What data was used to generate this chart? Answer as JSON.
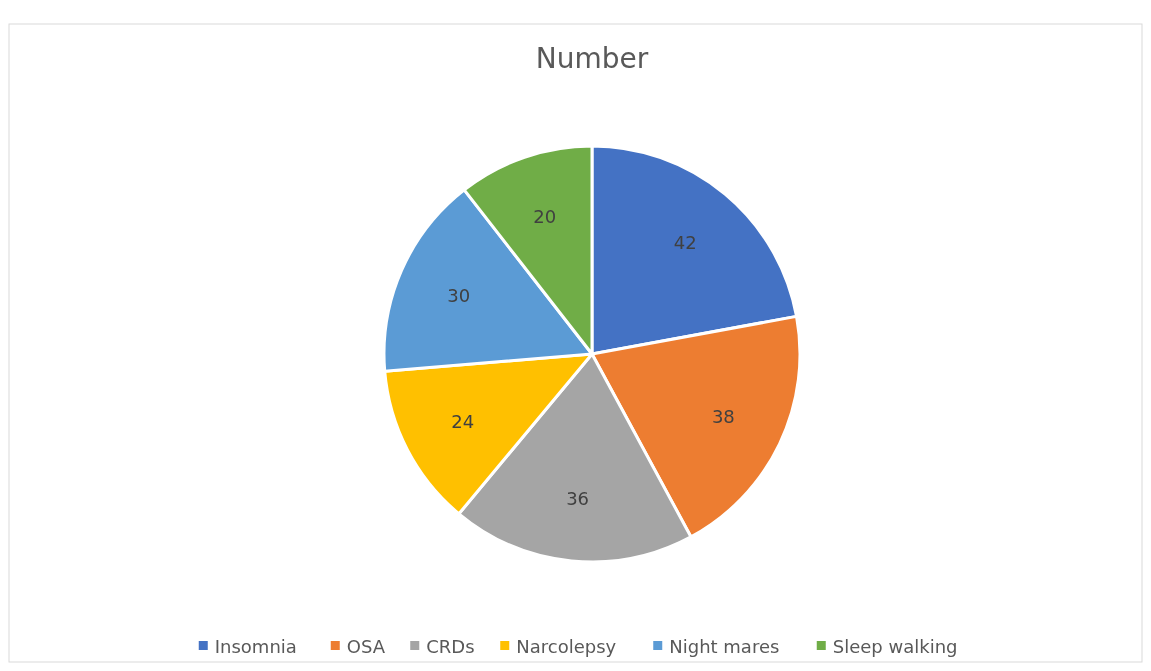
{
  "chart_data": {
    "type": "pie",
    "title": "Number",
    "categories": [
      "Insomnia",
      "OSA",
      "CRDs",
      "Narcolepsy",
      "Night mares",
      "Sleep walking"
    ],
    "values": [
      42,
      38,
      36,
      24,
      30,
      20
    ],
    "colors": [
      "#4472c4",
      "#ed7d31",
      "#a5a5a5",
      "#ffc000",
      "#5b9bd5",
      "#70ad47"
    ],
    "data_labels": true,
    "legend": "bottom"
  }
}
